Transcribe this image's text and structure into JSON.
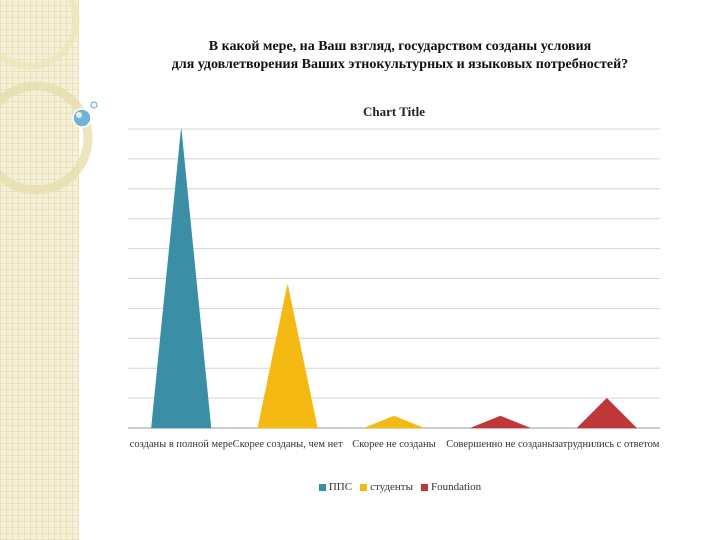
{
  "slide": {
    "title_line1": "В какой мере, на Ваш взгляд, государством созданы условия",
    "title_line2": "для удовлетворения Ваших этнокультурных и языковых потребностей?"
  },
  "chart_data": {
    "type": "area",
    "title": "Chart Title",
    "categories": [
      "созданы в полной мере",
      "Скорее созданы, чем нет",
      "Скорее не созданы",
      "Совершенно не созданы",
      "затруднились с ответом"
    ],
    "series": [
      {
        "name": "ППС",
        "color": "#3a8fa6",
        "values": [
          100,
          0,
          0,
          0,
          0
        ]
      },
      {
        "name": "студенты",
        "color": "#f5b914",
        "values": [
          0,
          48,
          4,
          0,
          0
        ]
      },
      {
        "name": "Foundation",
        "color": "#c0373a",
        "values": [
          0,
          0,
          0,
          4,
          10
        ]
      }
    ],
    "ylim": [
      0,
      100
    ],
    "gridlines": true,
    "legend": "bottom"
  }
}
